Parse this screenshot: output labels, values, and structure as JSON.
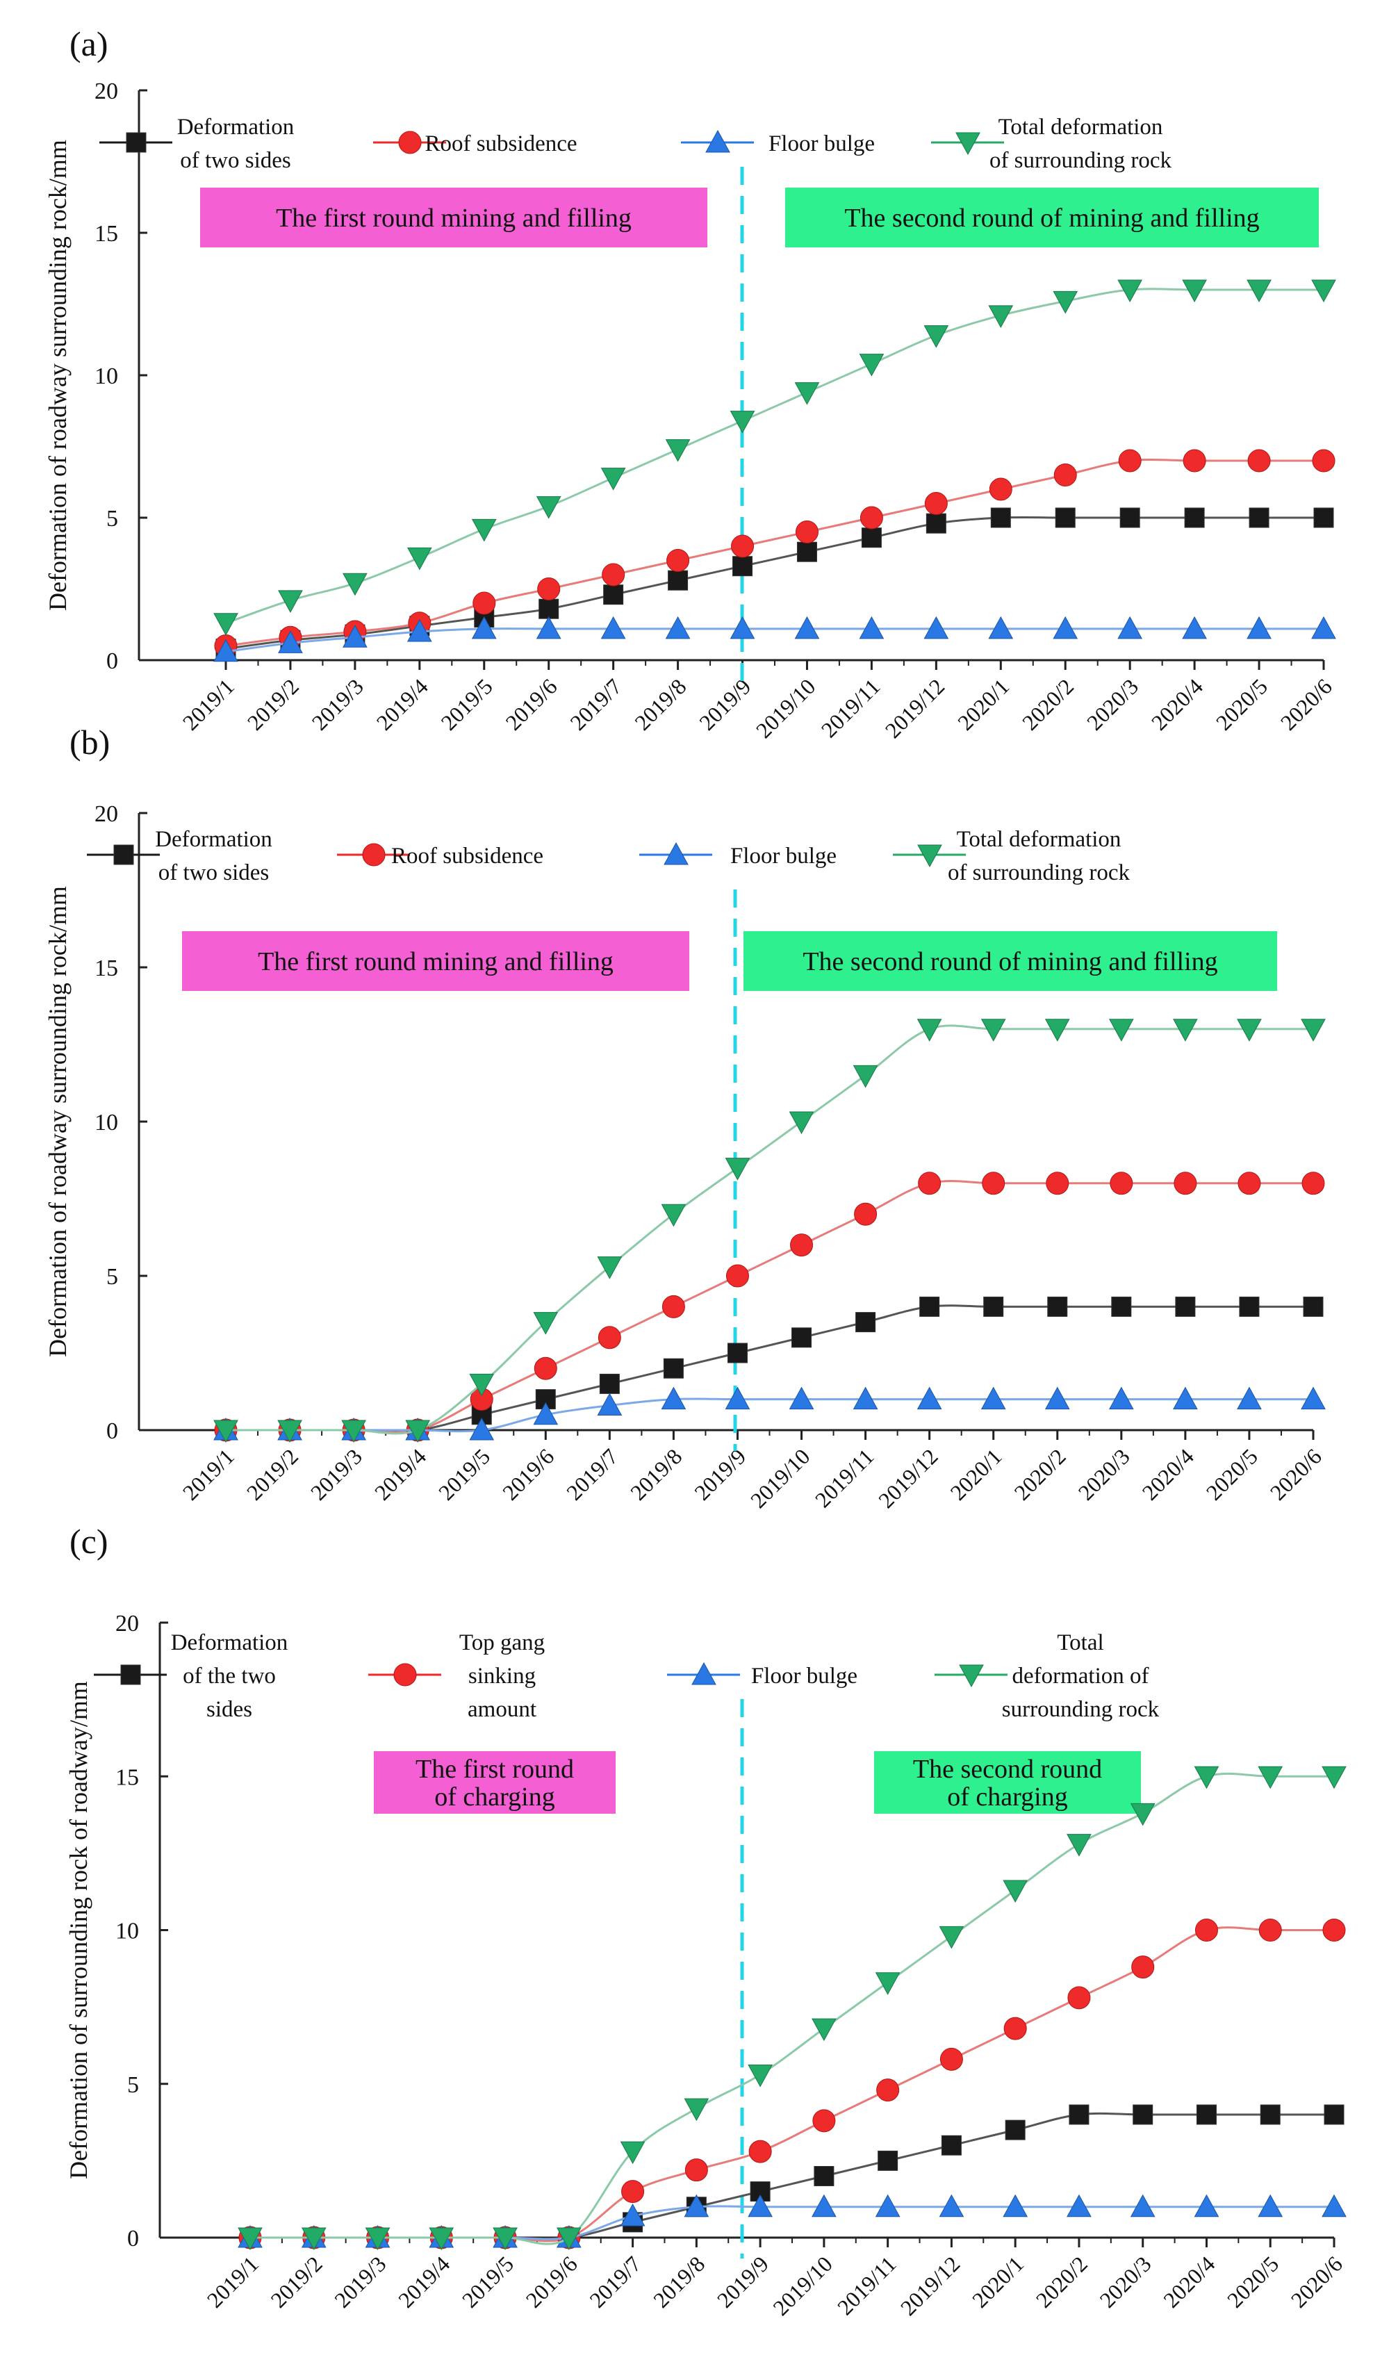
{
  "chart_data": [
    {
      "type": "line",
      "panel_label": "(a)",
      "ylabel": "Deformation of roadway surrounding rock/mm",
      "xlabel": "",
      "ylim": [
        0,
        20
      ],
      "yticks": [
        "0",
        "5",
        "10",
        "15",
        "20"
      ],
      "categories": [
        "2019/1",
        "2019/2",
        "2019/3",
        "2019/4",
        "2019/5",
        "2019/6",
        "2019/7",
        "2019/8",
        "2019/9",
        "2019/10",
        "2019/11",
        "2019/12",
        "2020/1",
        "2020/2",
        "2020/3",
        "2020/4",
        "2020/5",
        "2020/6"
      ],
      "legend": [
        {
          "lines": [
            "Deformation",
            "of two sides"
          ]
        },
        {
          "lines": [
            "Roof subsidence"
          ]
        },
        {
          "lines": [
            "Floor bulge"
          ]
        },
        {
          "lines": [
            "Total deformation",
            "of surrounding rock"
          ]
        }
      ],
      "regions": [
        {
          "label_lines": [
            "The first round mining and filling"
          ],
          "color": "#f45fd4"
        },
        {
          "label_lines": [
            "The second round of mining and filling"
          ],
          "color": "#2ff08e"
        }
      ],
      "divider_after_category": "2019/9",
      "series": [
        {
          "name": "Deformation of two sides",
          "marker": "square",
          "color": "#1a1a1a",
          "line_color": "#555555",
          "values": [
            0.4,
            0.7,
            0.9,
            1.2,
            1.5,
            1.8,
            2.3,
            2.8,
            3.3,
            3.8,
            4.3,
            4.8,
            5.0,
            5.0,
            5.0,
            5.0,
            5.0,
            5.0
          ]
        },
        {
          "name": "Roof subsidence",
          "marker": "circle",
          "color": "#ee2a2a",
          "line_color": "#e87a7a",
          "values": [
            0.5,
            0.8,
            1.0,
            1.3,
            2.0,
            2.5,
            3.0,
            3.5,
            4.0,
            4.5,
            5.0,
            5.5,
            6.0,
            6.5,
            7.0,
            7.0,
            7.0,
            7.0
          ]
        },
        {
          "name": "Floor bulge",
          "marker": "triangle-up",
          "color": "#2a78e4",
          "line_color": "#7aa8e8",
          "values": [
            0.3,
            0.6,
            0.8,
            1.0,
            1.1,
            1.1,
            1.1,
            1.1,
            1.1,
            1.1,
            1.1,
            1.1,
            1.1,
            1.1,
            1.1,
            1.1,
            1.1,
            1.1
          ]
        },
        {
          "name": "Total deformation of surrounding rock",
          "marker": "triangle-down",
          "color": "#22aa66",
          "line_color": "#8cc9a8",
          "values": [
            1.3,
            2.1,
            2.7,
            3.6,
            4.6,
            5.4,
            6.4,
            7.4,
            8.4,
            9.4,
            10.4,
            11.4,
            12.1,
            12.6,
            13.0,
            13.0,
            13.0,
            13.0
          ]
        }
      ]
    },
    {
      "type": "line",
      "panel_label": "(b)",
      "ylabel": "Deformation of roadway surrounding rock/mm",
      "xlabel": "",
      "ylim": [
        0,
        20
      ],
      "yticks": [
        "0",
        "5",
        "10",
        "15",
        "20"
      ],
      "categories": [
        "2019/1",
        "2019/2",
        "2019/3",
        "2019/4",
        "2019/5",
        "2019/6",
        "2019/7",
        "2019/8",
        "2019/9",
        "2019/10",
        "2019/11",
        "2019/12",
        "2020/1",
        "2020/2",
        "2020/3",
        "2020/4",
        "2020/5",
        "2020/6"
      ],
      "legend": [
        {
          "lines": [
            "Deformation",
            "of two sides"
          ]
        },
        {
          "lines": [
            "Roof subsidence"
          ]
        },
        {
          "lines": [
            "Floor bulge"
          ]
        },
        {
          "lines": [
            "Total deformation",
            "of surrounding rock"
          ]
        }
      ],
      "regions": [
        {
          "label_lines": [
            "The first round mining and filling"
          ],
          "color": "#f45fd4"
        },
        {
          "label_lines": [
            "The second round of mining and filling"
          ],
          "color": "#2ff08e"
        }
      ],
      "divider_after_category": "2019/9",
      "series": [
        {
          "name": "Deformation of two sides",
          "marker": "square",
          "color": "#1a1a1a",
          "line_color": "#555555",
          "values": [
            0,
            0,
            0,
            0,
            0.5,
            1.0,
            1.5,
            2.0,
            2.5,
            3.0,
            3.5,
            4.0,
            4.0,
            4.0,
            4.0,
            4.0,
            4.0,
            4.0
          ]
        },
        {
          "name": "Roof subsidence",
          "marker": "circle",
          "color": "#ee2a2a",
          "line_color": "#e87a7a",
          "values": [
            0,
            0,
            0,
            0,
            1.0,
            2.0,
            3.0,
            4.0,
            5.0,
            6.0,
            7.0,
            8.0,
            8.0,
            8.0,
            8.0,
            8.0,
            8.0,
            8.0
          ]
        },
        {
          "name": "Floor bulge",
          "marker": "triangle-up",
          "color": "#2a78e4",
          "line_color": "#7aa8e8",
          "values": [
            0,
            0,
            0,
            0,
            0,
            0.5,
            0.8,
            1.0,
            1.0,
            1.0,
            1.0,
            1.0,
            1.0,
            1.0,
            1.0,
            1.0,
            1.0,
            1.0
          ]
        },
        {
          "name": "Total deformation of surrounding rock",
          "marker": "triangle-down",
          "color": "#22aa66",
          "line_color": "#8cc9a8",
          "values": [
            0,
            0,
            0,
            0,
            1.5,
            3.5,
            5.3,
            7.0,
            8.5,
            10.0,
            11.5,
            13.0,
            13.0,
            13.0,
            13.0,
            13.0,
            13.0,
            13.0
          ]
        }
      ]
    },
    {
      "type": "line",
      "panel_label": "(c)",
      "ylabel": "Deformation of surrounding rock of roadway/mm",
      "xlabel": "",
      "ylim": [
        0,
        20
      ],
      "yticks": [
        "0",
        "5",
        "10",
        "15",
        "20"
      ],
      "categories": [
        "2019/1",
        "2019/2",
        "2019/3",
        "2019/4",
        "2019/5",
        "2019/6",
        "2019/7",
        "2019/8",
        "2019/9",
        "2019/10",
        "2019/11",
        "2019/12",
        "2020/1",
        "2020/2",
        "2020/3",
        "2020/4",
        "2020/5",
        "2020/6"
      ],
      "legend": [
        {
          "lines": [
            "Deformation",
            "of the two",
            "sides"
          ]
        },
        {
          "lines": [
            "Top gang",
            "sinking",
            "amount"
          ]
        },
        {
          "lines": [
            "Floor bulge"
          ]
        },
        {
          "lines": [
            "Total",
            "deformation of",
            "surrounding rock"
          ]
        }
      ],
      "regions": [
        {
          "label_lines": [
            "The first round",
            "of charging"
          ],
          "color": "#f45fd4"
        },
        {
          "label_lines": [
            "The second round",
            "of charging"
          ],
          "color": "#2ff08e"
        }
      ],
      "divider_after_category": "2019/9",
      "series": [
        {
          "name": "Deformation of the two sides",
          "marker": "square",
          "color": "#1a1a1a",
          "line_color": "#555555",
          "values": [
            0,
            0,
            0,
            0,
            0,
            0,
            0.5,
            1.0,
            1.5,
            2.0,
            2.5,
            3.0,
            3.5,
            4.0,
            4.0,
            4.0,
            4.0,
            4.0
          ]
        },
        {
          "name": "Top gang sinking amount",
          "marker": "circle",
          "color": "#ee2a2a",
          "line_color": "#e87a7a",
          "values": [
            0,
            0,
            0,
            0,
            0,
            0,
            1.5,
            2.2,
            2.8,
            3.8,
            4.8,
            5.8,
            6.8,
            7.8,
            8.8,
            10.0,
            10.0,
            10.0
          ]
        },
        {
          "name": "Floor bulge",
          "marker": "triangle-up",
          "color": "#2a78e4",
          "line_color": "#7aa8e8",
          "values": [
            0,
            0,
            0,
            0,
            0,
            0,
            0.7,
            1.0,
            1.0,
            1.0,
            1.0,
            1.0,
            1.0,
            1.0,
            1.0,
            1.0,
            1.0,
            1.0
          ]
        },
        {
          "name": "Total deformation of surrounding rock",
          "marker": "triangle-down",
          "color": "#22aa66",
          "line_color": "#8cc9a8",
          "values": [
            0,
            0,
            0,
            0,
            0,
            0,
            2.8,
            4.2,
            5.3,
            6.8,
            8.3,
            9.8,
            11.3,
            12.8,
            13.8,
            15.0,
            15.0,
            15.0
          ]
        }
      ]
    }
  ]
}
